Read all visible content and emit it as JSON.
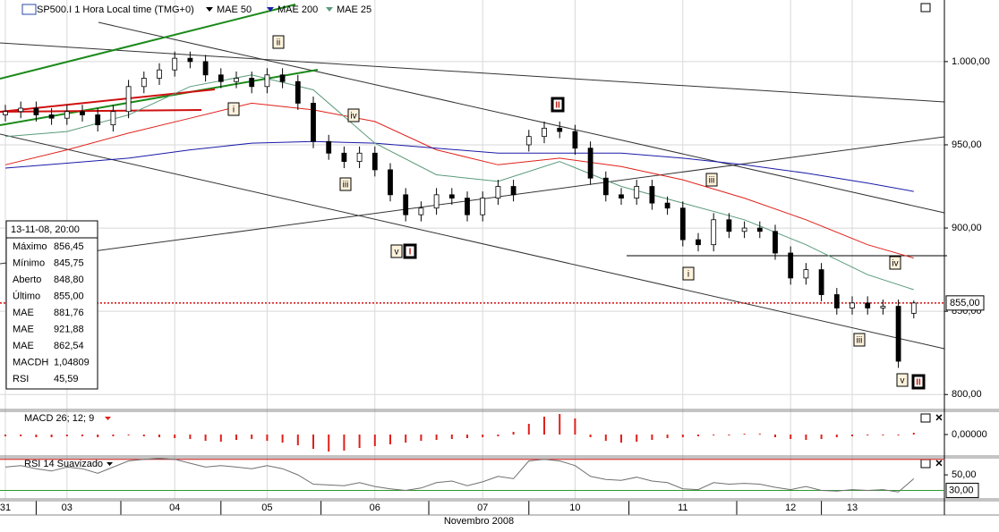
{
  "chart_data": {
    "type": "candlestick",
    "title": "SP500.I 1 Hora Local time (TMG+0)",
    "x_title": "Novembro 2008",
    "categories": [
      "31",
      null,
      null,
      null,
      "03",
      null,
      null,
      null,
      null,
      null,
      null,
      "04",
      null,
      null,
      null,
      null,
      null,
      "05",
      null,
      null,
      null,
      null,
      null,
      null,
      "06",
      null,
      null,
      null,
      null,
      null,
      null,
      "07",
      null,
      null,
      null,
      null,
      null,
      "10",
      null,
      null,
      null,
      null,
      null,
      null,
      "11",
      null,
      null,
      null,
      null,
      null,
      null,
      "12",
      null,
      null,
      null,
      "13",
      null,
      null,
      null,
      null
    ],
    "open": [
      968,
      970,
      972,
      968,
      966,
      970,
      968,
      962,
      970,
      985,
      990,
      995,
      1002,
      1000,
      992,
      988,
      990,
      985,
      992,
      988,
      975,
      952,
      945,
      940,
      945,
      935,
      920,
      908,
      912,
      920,
      918,
      908,
      918,
      925,
      950,
      955,
      960,
      958,
      948,
      930,
      920,
      918,
      925,
      915,
      912,
      893,
      890,
      905,
      898,
      900,
      898,
      885,
      870,
      875,
      860,
      852,
      855,
      852,
      853,
      848.8
    ],
    "high": [
      974,
      976,
      976,
      972,
      974,
      974,
      972,
      974,
      989,
      994,
      999,
      1006,
      1006,
      1004,
      996,
      994,
      994,
      996,
      996,
      992,
      979,
      956,
      949,
      949,
      949,
      939,
      924,
      916,
      924,
      924,
      922,
      922,
      929,
      929,
      959,
      964,
      964,
      962,
      952,
      934,
      924,
      929,
      929,
      919,
      916,
      897,
      909,
      909,
      904,
      904,
      902,
      889,
      879,
      879,
      864,
      859,
      859,
      857,
      857,
      856.45
    ],
    "low": [
      964,
      966,
      964,
      962,
      962,
      964,
      958,
      958,
      966,
      981,
      986,
      991,
      996,
      988,
      984,
      984,
      981,
      981,
      984,
      971,
      948,
      941,
      936,
      936,
      931,
      916,
      904,
      904,
      908,
      914,
      904,
      904,
      914,
      916,
      946,
      951,
      954,
      944,
      926,
      916,
      914,
      914,
      911,
      908,
      889,
      886,
      886,
      894,
      894,
      894,
      881,
      866,
      866,
      856,
      848,
      848,
      848,
      848,
      816,
      845.75
    ],
    "close": [
      970,
      972,
      968,
      966,
      970,
      968,
      962,
      970,
      985,
      990,
      995,
      1002,
      1000,
      992,
      988,
      990,
      985,
      992,
      988,
      975,
      952,
      945,
      940,
      945,
      935,
      920,
      908,
      912,
      920,
      918,
      908,
      918,
      925,
      920,
      955,
      960,
      958,
      948,
      930,
      920,
      918,
      925,
      915,
      912,
      893,
      890,
      905,
      898,
      900,
      898,
      885,
      870,
      875,
      860,
      852,
      855,
      852,
      853,
      820,
      855
    ],
    "up_color": "#ffffff",
    "down_color": "#000000",
    "ylim": [
      791,
      1037
    ],
    "yticks": [
      {
        "value": 1000,
        "label": "1.000,00"
      },
      {
        "value": 950,
        "label": "950,00"
      },
      {
        "value": 900,
        "label": "900,00"
      },
      {
        "value": 850,
        "label": "850,00"
      },
      {
        "value": 800,
        "label": "800,00"
      }
    ],
    "grid": true,
    "last_price": {
      "value": 855,
      "label": "855,00",
      "color": "#d01010"
    },
    "series": [
      {
        "name": "MAE 50",
        "color": "#e0201a",
        "x": [
          0,
          4,
          8,
          12,
          16,
          20,
          24,
          28,
          32,
          36,
          40,
          44,
          48,
          52,
          56,
          59
        ],
        "values": [
          938,
          947,
          957,
          966,
          975,
          971,
          964,
          947,
          938,
          942,
          937,
          929,
          918,
          905,
          890,
          882
        ]
      },
      {
        "name": "MAE 200",
        "color": "#1a1aa8",
        "x": [
          0,
          4,
          8,
          12,
          16,
          20,
          24,
          28,
          32,
          36,
          40,
          44,
          48,
          52,
          56,
          59
        ],
        "values": [
          936,
          939,
          942,
          947,
          951,
          952,
          951,
          948,
          945,
          945,
          945,
          942,
          938,
          933,
          927,
          922
        ]
      },
      {
        "name": "MAE 25",
        "color": "#5a9a7a",
        "x": [
          0,
          4,
          8,
          12,
          16,
          20,
          24,
          28,
          32,
          36,
          40,
          44,
          48,
          52,
          56,
          59
        ],
        "values": [
          955,
          958,
          968,
          985,
          992,
          983,
          951,
          932,
          928,
          940,
          925,
          915,
          905,
          890,
          872,
          863
        ]
      }
    ],
    "annotations": [
      "ii",
      "i",
      "iv",
      "iii",
      "v",
      "I",
      "II",
      "iii",
      "i",
      "iv",
      "iii",
      "v",
      "II"
    ],
    "info_box": {
      "date": "13-11-08, 20:00",
      "rows": [
        {
          "label": "Máximo",
          "value": "856,45",
          "color": "#000000"
        },
        {
          "label": "Mínimo",
          "value": "845,75",
          "color": "#000000"
        },
        {
          "label": "Aberto",
          "value": "848,80",
          "color": "#000000"
        },
        {
          "label": "Último",
          "value": "855,00",
          "color": "#000000"
        },
        {
          "label": "MAE",
          "value": "881,76",
          "color": "#d01010"
        },
        {
          "label": "MAE",
          "value": "921,88",
          "color": "#1a1aa8"
        },
        {
          "label": "MAE",
          "value": "862,54",
          "color": "#3a8a6a"
        },
        {
          "label": "MACDH",
          "value": "1,04809",
          "color": "#d01010"
        },
        {
          "label": "RSI",
          "value": "45,59",
          "color": "#000000"
        }
      ]
    },
    "macd": {
      "title": "MACD 26; 12; 9",
      "color": "#e0201a",
      "ylim": [
        -2.4,
        2.6
      ],
      "yticks": [
        {
          "value": 0,
          "label": "0,00000"
        }
      ],
      "values": [
        -0.2,
        -0.2,
        -0.3,
        -0.3,
        -0.2,
        -0.2,
        -0.3,
        -0.2,
        -0.1,
        -0.2,
        -0.3,
        -0.4,
        -0.5,
        -0.7,
        -0.8,
        -0.6,
        -0.5,
        -0.7,
        -0.9,
        -1.2,
        -1.6,
        -1.9,
        -1.8,
        -1.5,
        -1.3,
        -1.1,
        -0.9,
        -0.7,
        -0.6,
        -0.5,
        -0.4,
        -0.3,
        -0.2,
        0.3,
        1.2,
        2.0,
        2.3,
        1.8,
        -0.3,
        -0.7,
        -0.9,
        -0.8,
        -0.6,
        -0.4,
        -0.3,
        -0.2,
        -0.1,
        -0.1,
        0.1,
        0.1,
        -0.3,
        -0.5,
        -0.6,
        -0.5,
        -0.3,
        -0.2,
        -0.1,
        -0.1,
        -0.1,
        0.2
      ]
    },
    "rsi": {
      "title": "RSI 14 Suavizado",
      "color": "#707070",
      "ylim": [
        19,
        72
      ],
      "yticks": [
        {
          "value": 50,
          "label": "50,00"
        }
      ],
      "upper": 70,
      "upper_color": "#d01010",
      "lower": {
        "value": 30,
        "label": "30,00"
      },
      "lower_color": "#2a9a2a",
      "values": [
        60,
        62,
        58,
        55,
        60,
        58,
        52,
        60,
        68,
        70,
        71,
        70,
        65,
        60,
        62,
        60,
        58,
        62,
        58,
        50,
        38,
        37,
        36,
        40,
        35,
        32,
        30,
        33,
        40,
        42,
        36,
        41,
        48,
        45,
        68,
        70,
        68,
        62,
        48,
        44,
        43,
        47,
        42,
        40,
        32,
        31,
        40,
        38,
        39,
        38,
        34,
        31,
        35,
        30,
        29,
        31,
        30,
        31,
        28,
        45
      ]
    }
  }
}
